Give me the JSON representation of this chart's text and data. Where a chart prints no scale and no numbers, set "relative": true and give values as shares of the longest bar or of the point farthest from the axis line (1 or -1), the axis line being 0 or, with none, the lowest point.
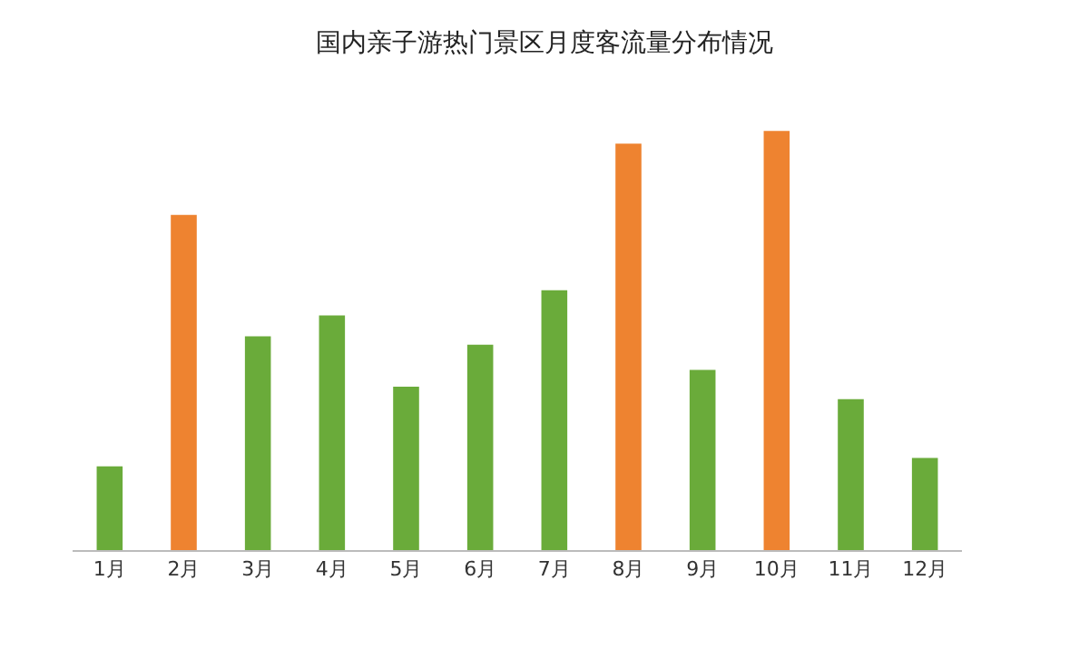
{
  "chart_data": {
    "type": "bar",
    "title": "国内亲子游热门景区月度客流量分布情况",
    "categories": [
      "1月",
      "2月",
      "3月",
      "4月",
      "5月",
      "6月",
      "7月",
      "8月",
      "9月",
      "10月",
      "11月",
      "12月"
    ],
    "values": [
      0.2,
      0.8,
      0.51,
      0.56,
      0.39,
      0.49,
      0.62,
      0.97,
      0.43,
      1,
      0.36,
      0.22
    ],
    "colors": [
      "#6aab3a",
      "#ee8330",
      "#6aab3a",
      "#6aab3a",
      "#6aab3a",
      "#6aab3a",
      "#6aab3a",
      "#ee8330",
      "#6aab3a",
      "#ee8330",
      "#6aab3a",
      "#6aab3a"
    ],
    "relative": true,
    "legend": false
  }
}
